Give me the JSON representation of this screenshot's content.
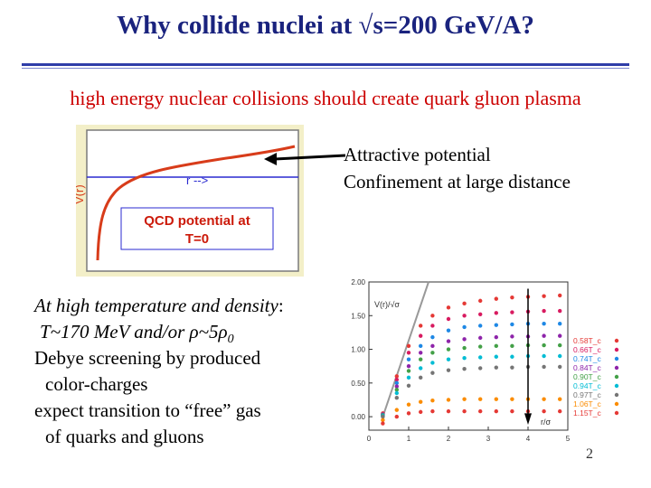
{
  "slide": {
    "title": "Why collide nuclei at √s=200 GeV/A?",
    "subtitle": "high energy nuclear collisions should create quark gluon plasma",
    "annotation": [
      "Attractive potential",
      "Confinement at large distance"
    ],
    "left_text": {
      "line1_prefix": "At high temperature and density",
      "line1_suffix": ":",
      "line2": "T~170 MeV and/or ρ~5ρ",
      "line2_sub": "0",
      "line3": "Debye screening by produced",
      "line4": "color-charges",
      "line5": "expect transition to “free” gas",
      "line6": "of quarks and gluons"
    },
    "page_number": "2"
  },
  "qcd_figure": {
    "box_label_1": "QCD potential at",
    "box_label_2": "T=0",
    "ylabel": "V(r)",
    "xlabel": "r -->",
    "colors": {
      "background": "#f3efc8",
      "curve": "#d83c1a",
      "text": "#0000cc"
    }
  },
  "chart_data": {
    "type": "scatter",
    "xlabel": "r/σ",
    "ylabel": "V(r)/√σ",
    "xlim": [
      0,
      5
    ],
    "ylim": [
      -0.2,
      2.0
    ],
    "x_ticks": [
      "0",
      "1",
      "2",
      "3",
      "4",
      "5"
    ],
    "y_ticks": [
      "0.00",
      "0.50",
      "1.00",
      "1.50",
      "2.00"
    ],
    "legend_position": "right",
    "x": [
      0.35,
      0.7,
      1.0,
      1.3,
      1.6,
      2.0,
      2.4,
      2.8,
      3.2,
      3.6,
      4.0,
      4.4,
      4.8
    ],
    "series": [
      {
        "name": "0.58T_c",
        "color": "#e53935",
        "values": [
          0.05,
          0.6,
          1.05,
          1.35,
          1.5,
          1.62,
          1.68,
          1.72,
          1.75,
          1.77,
          1.78,
          1.79,
          1.8
        ]
      },
      {
        "name": "0.66T_c",
        "color": "#d81b60",
        "values": [
          0.04,
          0.55,
          0.95,
          1.2,
          1.35,
          1.45,
          1.5,
          1.52,
          1.54,
          1.55,
          1.56,
          1.57,
          1.57
        ]
      },
      {
        "name": "0.74T_c",
        "color": "#1e88e5",
        "values": [
          0.03,
          0.5,
          0.85,
          1.05,
          1.18,
          1.28,
          1.33,
          1.35,
          1.36,
          1.37,
          1.38,
          1.38,
          1.38
        ]
      },
      {
        "name": "0.84T_c",
        "color": "#8e24aa",
        "values": [
          0.02,
          0.45,
          0.75,
          0.95,
          1.05,
          1.12,
          1.15,
          1.17,
          1.18,
          1.19,
          1.19,
          1.2,
          1.2
        ]
      },
      {
        "name": "0.90T_c",
        "color": "#43a047",
        "values": [
          0.02,
          0.4,
          0.68,
          0.85,
          0.95,
          1.0,
          1.02,
          1.04,
          1.05,
          1.05,
          1.06,
          1.06,
          1.06
        ]
      },
      {
        "name": "0.94T_c",
        "color": "#00bcd4",
        "values": [
          0.01,
          0.35,
          0.58,
          0.72,
          0.8,
          0.85,
          0.87,
          0.88,
          0.89,
          0.89,
          0.9,
          0.9,
          0.9
        ]
      },
      {
        "name": "0.97T_c",
        "color": "#757575",
        "values": [
          0.0,
          0.28,
          0.46,
          0.58,
          0.65,
          0.69,
          0.71,
          0.72,
          0.73,
          0.73,
          0.74,
          0.74,
          0.74
        ]
      },
      {
        "name": "1.06T_c",
        "color": "#fb8c00",
        "values": [
          -0.05,
          0.1,
          0.18,
          0.22,
          0.24,
          0.25,
          0.26,
          0.26,
          0.26,
          0.26,
          0.26,
          0.26,
          0.26
        ]
      },
      {
        "name": "1.15T_c",
        "color": "#e53935",
        "values": [
          -0.1,
          0.0,
          0.05,
          0.07,
          0.08,
          0.08,
          0.08,
          0.08,
          0.08,
          0.08,
          0.08,
          0.08,
          0.08
        ]
      }
    ]
  }
}
